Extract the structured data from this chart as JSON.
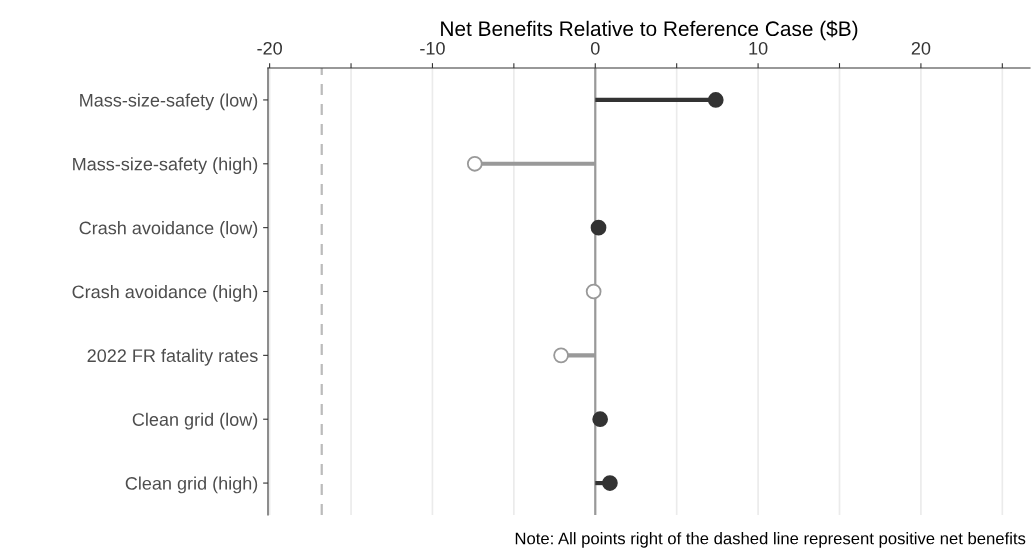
{
  "chart_data": {
    "type": "lollipop",
    "orientation": "horizontal",
    "xlabel": "Net Benefits Relative to Reference Case ($B)",
    "categories": [
      "Mass-size-safety (low)",
      "Mass-size-safety (high)",
      "Crash avoidance (low)",
      "Crash avoidance (high)",
      "2022 FR fatality rates",
      "Clean grid (low)",
      "Clean grid (high)"
    ],
    "values": [
      7.4,
      -7.4,
      0.2,
      -0.1,
      -2.1,
      0.3,
      0.9
    ],
    "colors": [
      "#333333",
      "#999999",
      "#333333",
      "#999999",
      "#999999",
      "#333333",
      "#333333"
    ],
    "xlim": [
      -20.1,
      26.7
    ],
    "xticks": [
      -20,
      {
        "value": -15,
        "label": null
      },
      -10,
      {
        "value": -5,
        "label": null
      },
      0,
      {
        "value": 5,
        "label": null
      },
      10,
      {
        "value": 15,
        "label": null
      },
      20,
      {
        "value": 25,
        "label": null
      }
    ],
    "grid": "x",
    "marker": "circle",
    "ref_lines": [
      {
        "axis": "x",
        "value": 0,
        "color": "#999999",
        "line_style": "solid"
      },
      {
        "axis": "x",
        "value": -16.8,
        "color": "#bbbbbb",
        "line_style": "dashed"
      }
    ],
    "annotations": [
      "Note: All points right of the dashed line represent positive net benefits"
    ]
  }
}
